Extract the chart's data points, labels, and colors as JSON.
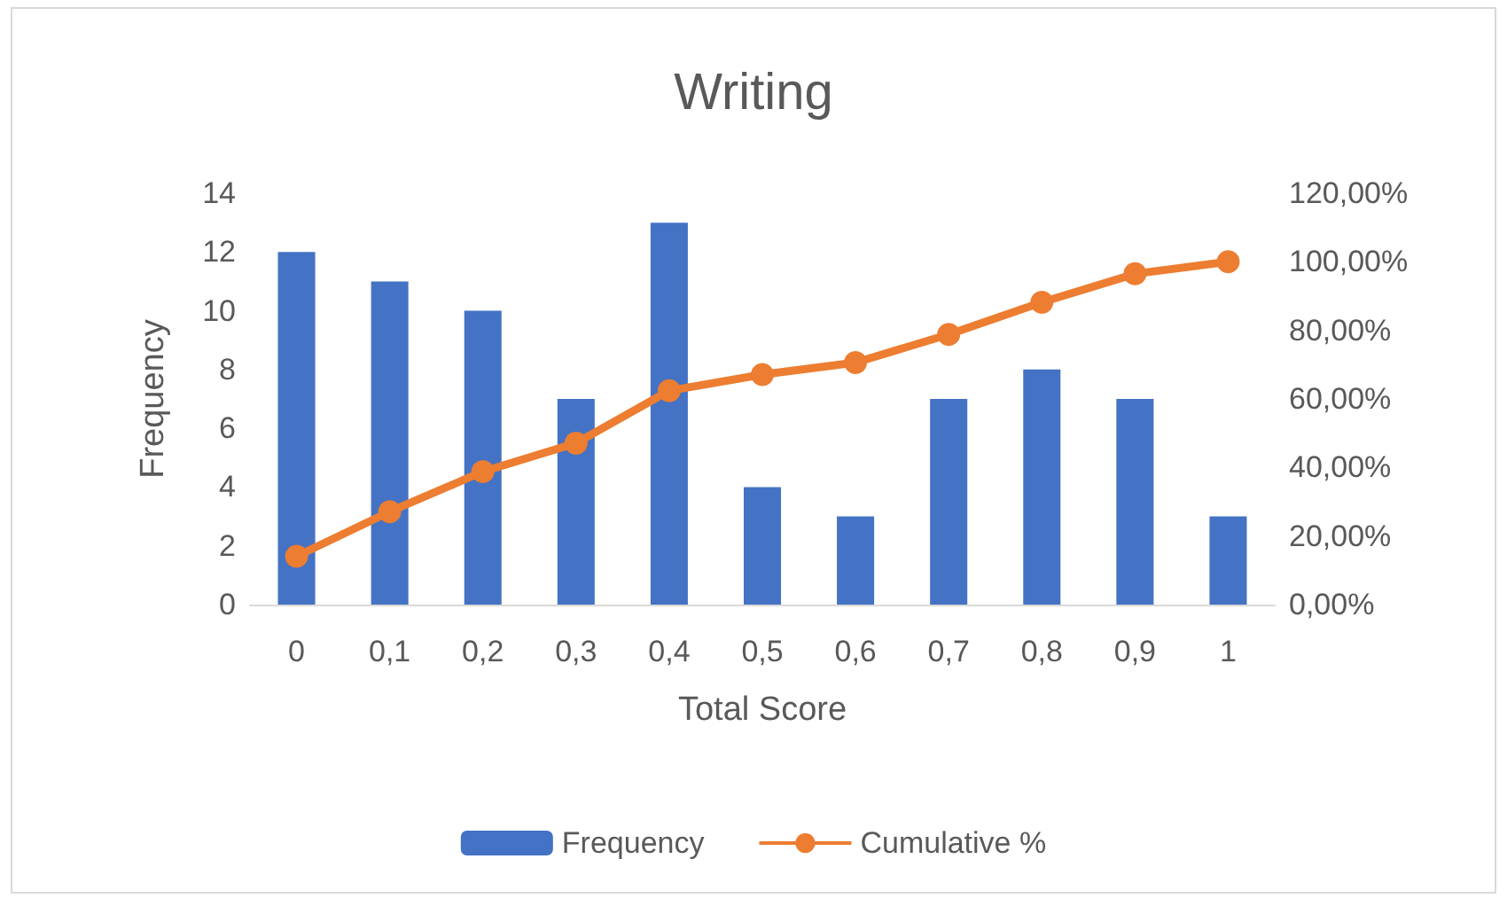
{
  "chart_data": {
    "type": "bar",
    "title": "Writing",
    "xlabel": "Total Score",
    "ylabel": "Frequency",
    "categories": [
      "0",
      "0,1",
      "0,2",
      "0,3",
      "0,4",
      "0,5",
      "0,6",
      "0,7",
      "0,8",
      "0,9",
      "1"
    ],
    "series": [
      {
        "name": "Frequency",
        "color": "#4472c4",
        "values": [
          12,
          11,
          10,
          7,
          13,
          4,
          3,
          7,
          8,
          7,
          3
        ]
      },
      {
        "name": "Cumulative %",
        "type": "line",
        "axis": "y2",
        "color": "#ed7d31",
        "marker": "circle",
        "values": [
          14.1,
          27.1,
          38.8,
          47.1,
          62.4,
          67.1,
          70.6,
          78.8,
          88.2,
          96.5,
          100
        ]
      }
    ],
    "ylim": [
      0,
      14
    ],
    "yticks": [
      0,
      2,
      4,
      6,
      8,
      10,
      12,
      14
    ],
    "y2lim": [
      0,
      120
    ],
    "y2ticks": [
      {
        "value": 0,
        "label": "0,00%"
      },
      {
        "value": 20,
        "label": "20,00%"
      },
      {
        "value": 40,
        "label": "40,00%"
      },
      {
        "value": 60,
        "label": "60,00%"
      },
      {
        "value": 80,
        "label": "80,00%"
      },
      {
        "value": 100,
        "label": "100,00%"
      },
      {
        "value": 120,
        "label": "120,00%"
      }
    ],
    "legend": "bottom"
  }
}
